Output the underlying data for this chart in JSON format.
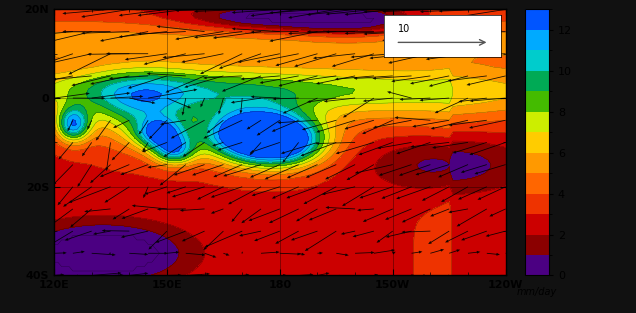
{
  "lon_range": [
    120,
    240
  ],
  "lat_range": [
    -40,
    20
  ],
  "colorbar_levels": [
    0,
    1,
    2,
    3,
    4,
    5,
    6,
    7,
    8,
    9,
    10,
    11,
    12,
    13
  ],
  "colorbar_colors": [
    "#4B0082",
    "#8B0000",
    "#CC0000",
    "#EE3300",
    "#FF6600",
    "#FF9900",
    "#FFCC00",
    "#CCEE00",
    "#44BB00",
    "#00AA55",
    "#00CCCC",
    "#00AAFF",
    "#0055FF",
    "#0000CC"
  ],
  "colorbar_ticks": [
    0,
    2,
    4,
    6,
    8,
    10,
    12
  ],
  "colorbar_label": "mm/day",
  "xlabel_ticks": [
    120,
    150,
    180,
    210,
    240
  ],
  "xlabel_labels": [
    "120E",
    "150E",
    "180",
    "150W",
    "120W"
  ],
  "ylabel_ticks": [
    -40,
    -20,
    0,
    20
  ],
  "ylabel_labels": [
    "40S",
    "20S",
    "0",
    "20N"
  ],
  "bg_color": "#000000",
  "plot_facecolor": "#ffffff",
  "tick_color": "black",
  "label_color": "black",
  "quiver_label": "10"
}
